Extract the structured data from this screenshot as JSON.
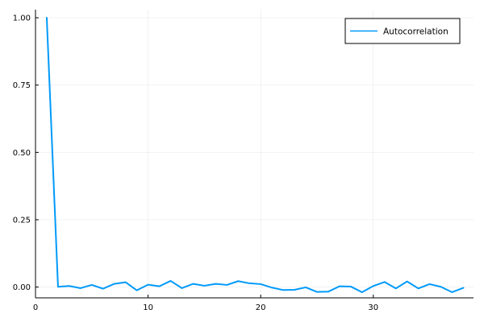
{
  "chart_data": {
    "type": "line",
    "title": "",
    "xlabel": "",
    "ylabel": "",
    "xlim": [
      0,
      38.9
    ],
    "ylim": [
      -0.04,
      1.03
    ],
    "xticks": [
      0,
      10,
      20,
      30
    ],
    "xtick_labels": [
      "0",
      "10",
      "20",
      "30"
    ],
    "yticks": [
      0.0,
      0.25,
      0.5,
      0.75,
      1.0
    ],
    "ytick_labels": [
      "0.00",
      "0.25",
      "0.50",
      "0.75",
      "1.00"
    ],
    "grid": true,
    "legend_position": "top-right",
    "series": [
      {
        "name": "Autocorrelation",
        "color": "#009AFA",
        "x": [
          1,
          2,
          3,
          4,
          5,
          6,
          7,
          8,
          9,
          10,
          11,
          12,
          13,
          14,
          15,
          16,
          17,
          18,
          19,
          20,
          21,
          22,
          23,
          24,
          25,
          26,
          27,
          28,
          29,
          30,
          31,
          32,
          33,
          34,
          35,
          36,
          37,
          38
        ],
        "y": [
          1.0,
          0.001,
          0.004,
          -0.004,
          0.008,
          -0.006,
          0.012,
          0.018,
          -0.012,
          0.009,
          0.003,
          0.023,
          -0.004,
          0.012,
          0.005,
          0.012,
          0.008,
          0.022,
          0.014,
          0.011,
          -0.002,
          -0.011,
          -0.01,
          -0.001,
          -0.018,
          -0.017,
          0.003,
          0.002,
          -0.019,
          0.004,
          0.019,
          -0.005,
          0.021,
          -0.005,
          0.011,
          0.001,
          -0.019,
          -0.003
        ]
      }
    ]
  }
}
